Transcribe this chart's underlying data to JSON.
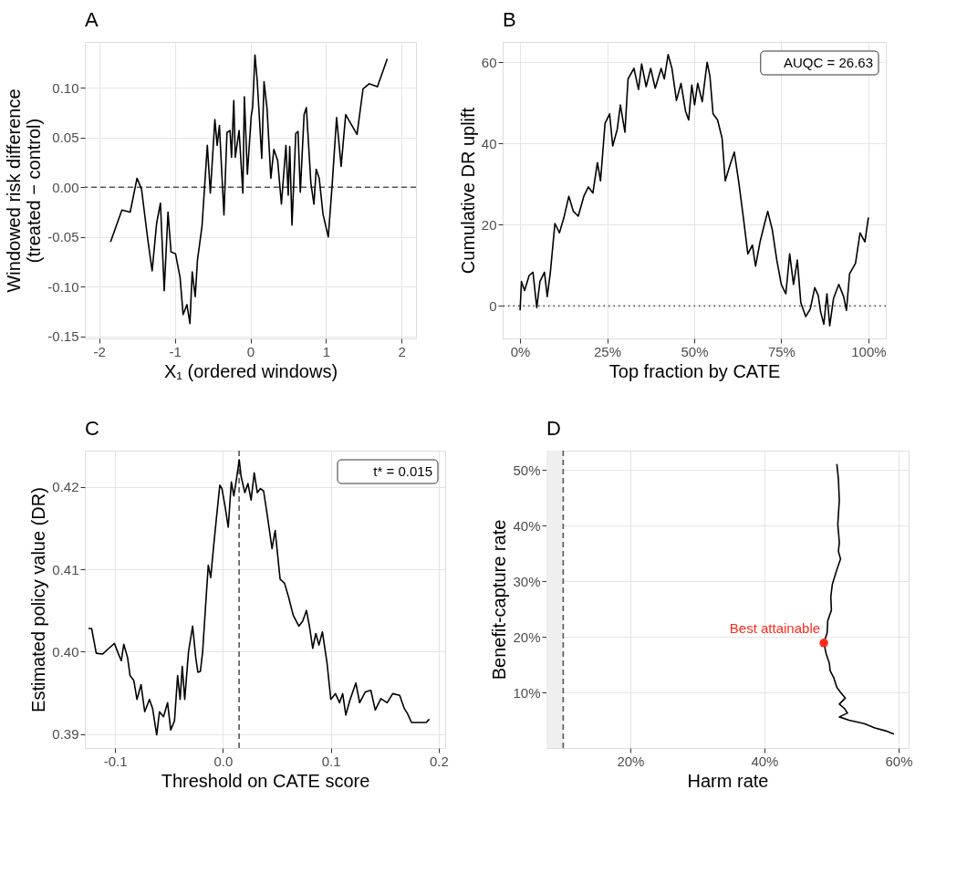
{
  "chart_data": [
    {
      "type": "line",
      "title": "A",
      "xlabel": "X₁ (ordered windows)",
      "ylabel": "Windowed risk difference\n(treated − control)",
      "grid": true,
      "xlim": [
        -2.19,
        2.19
      ],
      "ylim": [
        -0.152,
        0.146
      ],
      "xticks": [
        -2,
        -1,
        0,
        1,
        2
      ],
      "yticks": [
        {
          "value": -0.15,
          "label": "-0.15"
        },
        {
          "value": -0.1,
          "label": "-0.10"
        },
        {
          "value": -0.05,
          "label": "-0.05"
        },
        {
          "value": 0,
          "label": "0.00"
        },
        {
          "value": 0.05,
          "label": "0.05"
        },
        {
          "value": 0.1,
          "label": "0.10"
        }
      ],
      "ref_lines": [
        {
          "axis": "y",
          "value": 0,
          "color": "#555555",
          "line_style": "dashed"
        }
      ],
      "series": [
        {
          "color": "#000000",
          "x": [
            -1.85,
            -1.7,
            -1.59,
            -1.5,
            -1.44,
            -1.36,
            -1.3,
            -1.24,
            -1.19,
            -1.14,
            -1.09,
            -1.05,
            -0.99,
            -0.93,
            -0.89,
            -0.84,
            -0.8,
            -0.77,
            -0.73,
            -0.7,
            -0.64,
            -0.57,
            -0.53,
            -0.47,
            -0.44,
            -0.41,
            -0.35,
            -0.31,
            -0.27,
            -0.25,
            -0.22,
            -0.2,
            -0.15,
            -0.1,
            -0.08,
            -0.04,
            0.01,
            0.03,
            0.06,
            0.09,
            0.15,
            0.18,
            0.22,
            0.27,
            0.31,
            0.36,
            0.41,
            0.47,
            0.5,
            0.52,
            0.55,
            0.6,
            0.63,
            0.66,
            0.71,
            0.74,
            0.8,
            0.84,
            0.87,
            0.91,
            0.96,
            1.03,
            1.08,
            1.14,
            1.2,
            1.26,
            1.41,
            1.49,
            1.57,
            1.68,
            1.81
          ],
          "values": [
            -0.055,
            -0.023,
            -0.025,
            0.009,
            -0.002,
            -0.051,
            -0.084,
            -0.036,
            -0.016,
            -0.104,
            -0.025,
            -0.065,
            -0.067,
            -0.091,
            -0.128,
            -0.118,
            -0.137,
            -0.085,
            -0.11,
            -0.073,
            -0.039,
            0.042,
            -0.006,
            0.068,
            0.042,
            0.062,
            -0.028,
            0.055,
            0.057,
            0.03,
            0.087,
            0.03,
            0.057,
            -0.006,
            0.091,
            0.013,
            0.071,
            0.081,
            0.133,
            0.107,
            0.029,
            0.106,
            0.079,
            0.009,
            0.038,
            0.027,
            -0.017,
            0.042,
            -0.008,
            0.041,
            -0.038,
            0.054,
            0.056,
            -0.005,
            0.073,
            0.08,
            0.004,
            -0.017,
            0.018,
            0.009,
            -0.027,
            -0.05,
            0.001,
            0.07,
            0.021,
            0.073,
            0.053,
            0.099,
            0.104,
            0.101,
            0.129
          ]
        }
      ]
    },
    {
      "type": "line",
      "title": "B",
      "xlabel": "Top fraction by CATE",
      "ylabel": "Cumulative DR uplift",
      "grid": true,
      "xlim": [
        -5,
        105
      ],
      "ylim": [
        -8,
        65
      ],
      "xticks": [
        {
          "value": 0,
          "label": "0%"
        },
        {
          "value": 25,
          "label": "25%"
        },
        {
          "value": 50,
          "label": "50%"
        },
        {
          "value": 75,
          "label": "75%"
        },
        {
          "value": 100,
          "label": "100%"
        }
      ],
      "yticks": [
        0,
        20,
        40,
        60
      ],
      "ref_lines": [
        {
          "axis": "y",
          "value": 0,
          "color": "#555555",
          "line_style": "dotted"
        }
      ],
      "annotations": [
        "AUQC = 26.63"
      ],
      "series": [
        {
          "color": "#000000",
          "x": [
            0,
            0.4,
            1.3,
            2.6,
            3.7,
            4.8,
            5.7,
            7,
            7.8,
            8.7,
            10,
            11.3,
            12.6,
            14,
            15.3,
            16.7,
            18.3,
            19.6,
            20.9,
            22.2,
            23.1,
            24.4,
            25.7,
            26.6,
            27.9,
            28.8,
            30.1,
            31,
            32.7,
            34,
            34.9,
            36.2,
            37.5,
            38.8,
            40.5,
            41.4,
            42.5,
            43.6,
            44.9,
            46.2,
            47.5,
            48.4,
            49.3,
            50.1,
            51,
            52.3,
            53.7,
            54.5,
            55.4,
            56.7,
            58,
            58.9,
            60.2,
            61.5,
            62.8,
            64.1,
            65.4,
            66.7,
            67.6,
            68.9,
            70.2,
            71.1,
            72.4,
            73.7,
            75,
            76.3,
            77.4,
            78.5,
            79.6,
            80.6,
            82,
            83.3,
            84.6,
            85.6,
            86.3,
            87.2,
            88.1,
            88.9,
            90,
            91.5,
            92.9,
            93.7,
            94.6,
            96.3,
            97.6,
            99,
            100
          ],
          "values": [
            -1.1,
            6,
            3.8,
            7.5,
            8.3,
            -0.4,
            6,
            8.3,
            2.3,
            8.3,
            20.3,
            18,
            21.8,
            27,
            23.3,
            22.1,
            27,
            29.3,
            27.8,
            35.3,
            30.8,
            45,
            47.3,
            39.4,
            43.5,
            49.5,
            42.8,
            55.9,
            58.5,
            53.3,
            59.6,
            54,
            58.5,
            53.6,
            58.5,
            55.9,
            61.9,
            58.5,
            50.6,
            54.8,
            48,
            45.8,
            54.4,
            49.5,
            54.8,
            50.3,
            60,
            56.6,
            47.3,
            45.8,
            41.3,
            30.8,
            34.5,
            37.9,
            30.4,
            21.8,
            12.8,
            15,
            9.8,
            15.8,
            20.3,
            23.3,
            18.8,
            11.3,
            5.3,
            3,
            12.8,
            5.3,
            11.3,
            0.8,
            -2.6,
            -0.8,
            4.5,
            2.6,
            -1.5,
            -4.5,
            3,
            -4.9,
            1.9,
            5.3,
            2.3,
            -1.1,
            7.9,
            10.5,
            18,
            15.8,
            21.8
          ]
        }
      ]
    },
    {
      "type": "line",
      "title": "C",
      "xlabel": "Threshold on CATE score",
      "ylabel": "Estimated policy value (DR)",
      "grid": true,
      "xlim": [
        -0.128,
        0.206
      ],
      "ylim": [
        0.3883,
        0.4244
      ],
      "xticks": [
        -0.1,
        {
          "value": 0,
          "label": "0.0"
        },
        0.1,
        0.2
      ],
      "yticks": [
        0.39,
        {
          "value": 0.4,
          "label": "0.40"
        },
        0.41,
        0.42
      ],
      "ref_lines": [
        {
          "axis": "x",
          "value": 0.015,
          "color": "#555555",
          "line_style": "dashed"
        }
      ],
      "annotations": [
        "t* = 0.015"
      ],
      "series": [
        {
          "color": "#000000",
          "x": [
            -0.1246,
            -0.1217,
            -0.1174,
            -0.1116,
            -0.1058,
            -0.1006,
            -0.0971,
            -0.0942,
            -0.0919,
            -0.0884,
            -0.0861,
            -0.0826,
            -0.0797,
            -0.0759,
            -0.0725,
            -0.0681,
            -0.0652,
            -0.0614,
            -0.0588,
            -0.0551,
            -0.0513,
            -0.0484,
            -0.0449,
            -0.042,
            -0.0397,
            -0.0377,
            -0.0354,
            -0.0319,
            -0.0281,
            -0.0252,
            -0.0232,
            -0.0209,
            -0.0188,
            -0.0159,
            -0.0136,
            -0.0113,
            -0.0087,
            -0.0058,
            -0.0029,
            -0.0009,
            0.002,
            0.0049,
            0.0078,
            0.0101,
            0.0125,
            0.0151,
            0.0168,
            0.0203,
            0.0232,
            0.0261,
            0.029,
            0.0319,
            0.0348,
            0.0377,
            0.0414,
            0.0455,
            0.0484,
            0.053,
            0.0571,
            0.0609,
            0.0652,
            0.0704,
            0.0739,
            0.0774,
            0.0803,
            0.0832,
            0.0861,
            0.089,
            0.0922,
            0.0965,
            0.1,
            0.1043,
            0.1081,
            0.111,
            0.1139,
            0.1174,
            0.1232,
            0.1267,
            0.1319,
            0.1371,
            0.1412,
            0.1464,
            0.1522,
            0.1574,
            0.1638,
            0.1681,
            0.171,
            0.1748,
            0.1884,
            0.1913
          ],
          "values": [
            0.4028,
            0.4028,
            0.3998,
            0.3997,
            0.4004,
            0.401,
            0.3998,
            0.3989,
            0.4009,
            0.3993,
            0.3971,
            0.3965,
            0.3942,
            0.396,
            0.3927,
            0.3942,
            0.3931,
            0.3899,
            0.3927,
            0.3921,
            0.3938,
            0.3905,
            0.3916,
            0.3971,
            0.3942,
            0.3982,
            0.3942,
            0.4,
            0.4031,
            0.3993,
            0.3975,
            0.3976,
            0.4,
            0.4059,
            0.4105,
            0.409,
            0.4127,
            0.4165,
            0.4202,
            0.4198,
            0.4176,
            0.4151,
            0.4206,
            0.4189,
            0.4209,
            0.4233,
            0.4213,
            0.4193,
            0.4204,
            0.4184,
            0.4217,
            0.4193,
            0.4198,
            0.4195,
            0.4163,
            0.4125,
            0.4147,
            0.4088,
            0.4083,
            0.4066,
            0.4044,
            0.4031,
            0.4037,
            0.405,
            0.403,
            0.4004,
            0.4022,
            0.4008,
            0.4024,
            0.3986,
            0.3942,
            0.3949,
            0.3938,
            0.3949,
            0.3923,
            0.394,
            0.3962,
            0.3938,
            0.3951,
            0.3953,
            0.3929,
            0.3943,
            0.3938,
            0.3949,
            0.3947,
            0.3931,
            0.3925,
            0.3914,
            0.3914,
            0.3918
          ]
        }
      ]
    },
    {
      "type": "line",
      "title": "D",
      "xlabel": "Harm rate",
      "ylabel": "Benefit-capture rate",
      "grid": true,
      "xlim": [
        7.5,
        61.5
      ],
      "ylim": [
        0,
        53.5
      ],
      "xticks": [
        {
          "value": 20,
          "label": "20%"
        },
        {
          "value": 40,
          "label": "40%"
        },
        {
          "value": 60,
          "label": "60%"
        }
      ],
      "yticks": [
        {
          "value": 10,
          "label": "10%"
        },
        {
          "value": 20,
          "label": "20%"
        },
        {
          "value": 30,
          "label": "30%"
        },
        {
          "value": 40,
          "label": "40%"
        },
        {
          "value": 50,
          "label": "50%"
        }
      ],
      "bands": [
        {
          "axis": "x",
          "from": 7.5,
          "to": 10,
          "color": "#efefef"
        }
      ],
      "ref_lines": [
        {
          "axis": "x",
          "value": 10,
          "color": "#555555",
          "line_style": "dashed"
        }
      ],
      "annotations": [
        {
          "text": "Best attainable",
          "x": 48.86,
          "y": 18.9
        }
      ],
      "series": [
        {
          "color": "#000000",
          "x": [
            50.8,
            51.03,
            51.17,
            50.94,
            51.17,
            51.03,
            51.35,
            50.8,
            50.12,
            49.9,
            49.99,
            49.44,
            49.35,
            48.86,
            49.22,
            49.67,
            49.81,
            50.35,
            50.8,
            51.48,
            52.07,
            51.17,
            51.94,
            52.39,
            51.17,
            52.62,
            54.88,
            56.47,
            58.05,
            59.32
          ],
          "values": [
            51.1,
            48.4,
            44.6,
            40.2,
            37,
            35.4,
            34,
            32.1,
            29.4,
            27.2,
            24.8,
            22.9,
            20.7,
            18.9,
            16.9,
            15.3,
            13.9,
            12.6,
            10.9,
            9.8,
            9,
            7.9,
            7.1,
            6.3,
            5.6,
            5,
            4.4,
            3.6,
            3.1,
            2.5
          ]
        },
        {
          "type": "scatter",
          "color": "#ff2a1a",
          "x": [
            48.86
          ],
          "values": [
            18.9
          ]
        }
      ]
    }
  ]
}
